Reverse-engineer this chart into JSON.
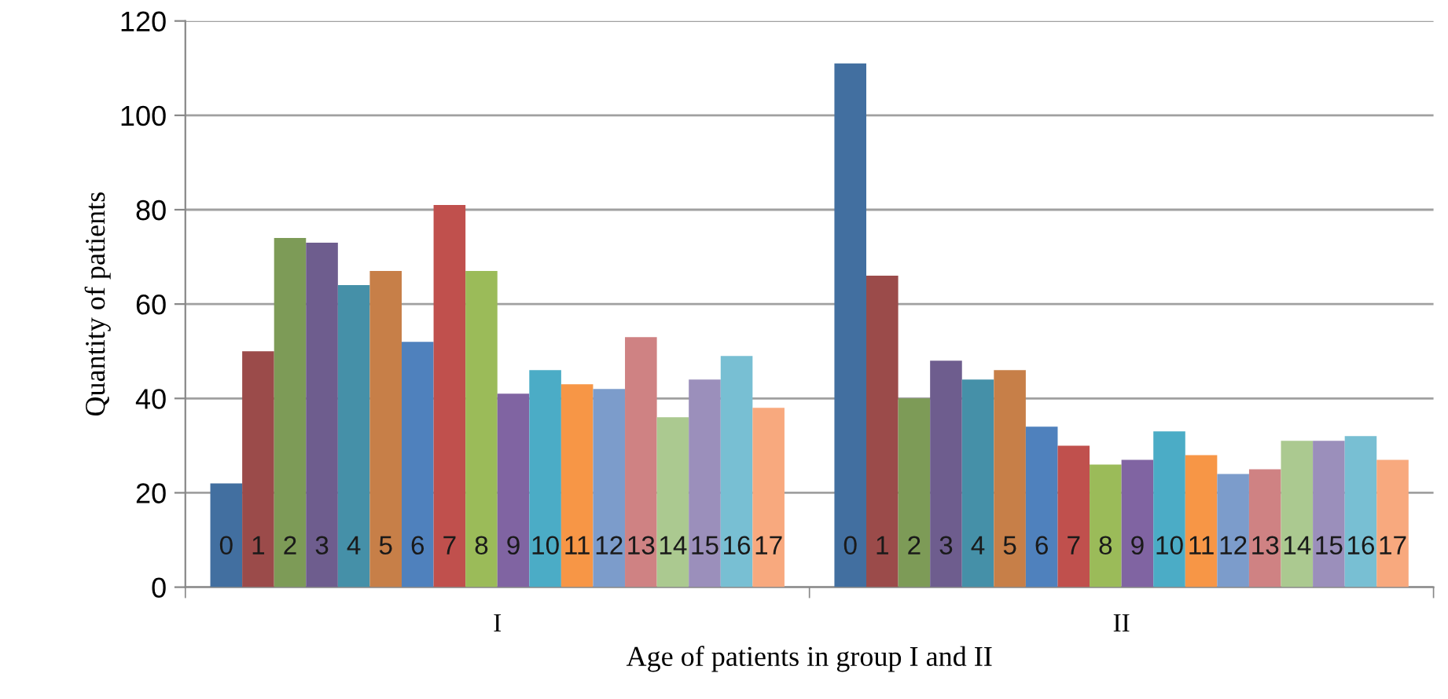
{
  "chart_data": {
    "type": "bar",
    "xlabel": "Age of patients in group I and II",
    "ylabel": "Quantity of patients",
    "categories": [
      "I",
      "II"
    ],
    "series": [
      {
        "name": "0",
        "color": "#426fa0",
        "values": [
          22,
          111
        ]
      },
      {
        "name": "1",
        "color": "#9b4b4a",
        "values": [
          50,
          66
        ]
      },
      {
        "name": "2",
        "color": "#7d9b57",
        "values": [
          74,
          40
        ]
      },
      {
        "name": "3",
        "color": "#6e5d8e",
        "values": [
          73,
          48
        ]
      },
      {
        "name": "4",
        "color": "#4590a8",
        "values": [
          64,
          44
        ]
      },
      {
        "name": "5",
        "color": "#c77f48",
        "values": [
          67,
          46
        ]
      },
      {
        "name": "6",
        "color": "#4f81bd",
        "values": [
          52,
          34
        ]
      },
      {
        "name": "7",
        "color": "#c0504d",
        "values": [
          81,
          30
        ]
      },
      {
        "name": "8",
        "color": "#9bbb59",
        "values": [
          67,
          26
        ]
      },
      {
        "name": "9",
        "color": "#8064a2",
        "values": [
          41,
          27
        ]
      },
      {
        "name": "10",
        "color": "#4bacc6",
        "values": [
          46,
          33
        ]
      },
      {
        "name": "11",
        "color": "#f79646",
        "values": [
          43,
          28
        ]
      },
      {
        "name": "12",
        "color": "#7c9ccb",
        "values": [
          42,
          24
        ]
      },
      {
        "name": "13",
        "color": "#cf8283",
        "values": [
          53,
          25
        ]
      },
      {
        "name": "14",
        "color": "#abc990",
        "values": [
          36,
          31
        ]
      },
      {
        "name": "15",
        "color": "#9b8fbb",
        "values": [
          44,
          31
        ]
      },
      {
        "name": "16",
        "color": "#78bfd3",
        "values": [
          49,
          32
        ]
      },
      {
        "name": "17",
        "color": "#f8a97e",
        "values": [
          38,
          27
        ]
      }
    ],
    "ylim": [
      0,
      120
    ],
    "yticks": [
      0,
      20,
      40,
      60,
      80,
      100,
      120
    ],
    "grid": "y",
    "legend": false
  }
}
